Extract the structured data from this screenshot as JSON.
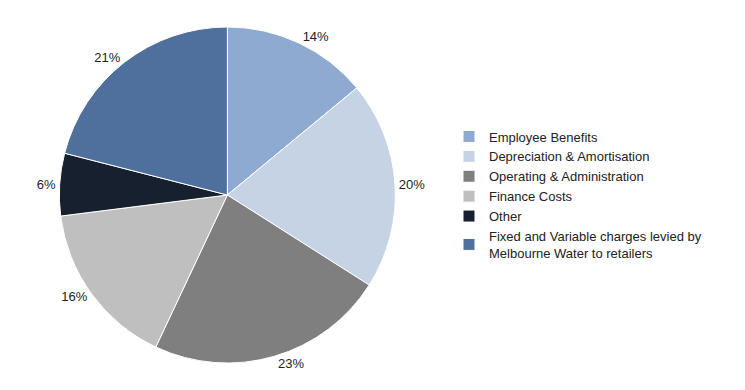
{
  "chart_data": {
    "type": "pie",
    "categories": [
      "Employee Benefits",
      "Depreciation & Amortisation",
      "Operating & Administration",
      "Finance Costs",
      "Other",
      "Fixed and Variable charges levied by Melbourne Water to retailers"
    ],
    "values": [
      14,
      20,
      23,
      16,
      6,
      21
    ],
    "value_labels": [
      "14%",
      "20%",
      "23%",
      "16%",
      "6%",
      "21%"
    ],
    "colors": [
      "#8eaad0",
      "#c6d3e5",
      "#7f7f7f",
      "#bfbfbf",
      "#17202e",
      "#4f6f9c"
    ],
    "data_labels": true,
    "legend": "right"
  }
}
